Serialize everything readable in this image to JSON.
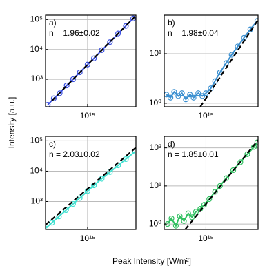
{
  "xlabel": "Peak Intensity [W/m²]",
  "ylabel": "Intensity [a.u.]",
  "chart_data": [
    {
      "type": "scatter",
      "label": "a)",
      "annotation": "n = 1.96±0.02",
      "xlog": true,
      "ylog": true,
      "grid": true,
      "xlim": [
        300000000000000.0,
        4000000000000000.0
      ],
      "ylim": [
        120,
        140000
      ],
      "xticks": [
        {
          "value": 1000000000000000.0,
          "label": "10¹⁵"
        }
      ],
      "yticks": [
        {
          "value": 1000,
          "label": "10³"
        },
        {
          "value": 10000,
          "label": "10⁴"
        },
        {
          "value": 100000,
          "label": "10⁵"
        }
      ],
      "series": [
        {
          "color": "#3a4fe0",
          "style": "markers-line",
          "x": [
            320000000000000.0,
            380000000000000.0,
            450000000000000.0,
            550000000000000.0,
            660000000000000.0,
            800000000000000.0,
            1000000000000000.0,
            1200000000000000.0,
            1500000000000000.0,
            1900000000000000.0,
            2400000000000000.0,
            3000000000000000.0,
            3700000000000000.0
          ],
          "values": [
            140,
            230,
            340,
            620,
            1000,
            1700,
            3100,
            5000,
            9400,
            17500,
            34000,
            61000,
            109000
          ]
        },
        {
          "color": "#000000",
          "style": "dashed",
          "x": [
            360000000000000.0,
            4000000000000000.0
          ],
          "values": [
            190,
            135000
          ]
        }
      ]
    },
    {
      "type": "scatter",
      "label": "b)",
      "annotation": "n = 1.98±0.04",
      "xlog": true,
      "ylog": true,
      "grid": true,
      "xlim": [
        300000000000000.0,
        4500000000000000.0
      ],
      "ylim": [
        0.85,
        60
      ],
      "xticks": [
        {
          "value": 1000000000000000.0,
          "label": "10¹⁵"
        }
      ],
      "yticks": [
        {
          "value": 1,
          "label": "10⁰"
        },
        {
          "value": 10,
          "label": "10¹"
        }
      ],
      "series": [
        {
          "color": "#3a8fd0",
          "style": "markers-line",
          "x": [
            320000000000000.0,
            360000000000000.0,
            400000000000000.0,
            450000000000000.0,
            500000000000000.0,
            560000000000000.0,
            630000000000000.0,
            700000000000000.0,
            800000000000000.0,
            900000000000000.0,
            1000000000000000.0,
            1150000000000000.0,
            1300000000000000.0,
            1500000000000000.0,
            1800000000000000.0,
            2100000000000000.0,
            2500000000000000.0,
            3000000000000000.0,
            3600000000000000.0,
            4400000000000000.0
          ],
          "values": [
            1.5,
            1.3,
            1.7,
            1.4,
            1.6,
            1.2,
            1.5,
            1.3,
            1.6,
            1.4,
            1.6,
            2.0,
            2.8,
            4.2,
            6.5,
            9.5,
            14,
            21,
            31,
            46
          ]
        },
        {
          "color": "#000000",
          "style": "dashed",
          "x": [
            850000000000000.0,
            4500000000000000.0
          ],
          "values": [
            0.85,
            48
          ]
        }
      ]
    },
    {
      "type": "scatter",
      "label": "c)",
      "annotation": "n = 2.03±0.02",
      "xlog": true,
      "ylog": true,
      "grid": true,
      "xlim": [
        300000000000000.0,
        4000000000000000.0
      ],
      "ylim": [
        120,
        140000
      ],
      "xticks": [
        {
          "value": 1000000000000000.0,
          "label": "10¹⁵"
        }
      ],
      "yticks": [
        {
          "value": 1000,
          "label": "10³"
        },
        {
          "value": 10000,
          "label": "10⁴"
        },
        {
          "value": 100000,
          "label": "10⁵"
        }
      ],
      "series": [
        {
          "color": "#40e0d0",
          "style": "markers-line",
          "x": [
            300000000000000.0,
            360000000000000.0,
            440000000000000.0,
            540000000000000.0,
            660000000000000.0,
            800000000000000.0,
            1000000000000000.0,
            1200000000000000.0,
            1500000000000000.0,
            1900000000000000.0,
            2400000000000000.0,
            3000000000000000.0,
            3900000000000000.0
          ],
          "values": [
            130,
            200,
            320,
            520,
            830,
            1300,
            2200,
            3400,
            5600,
            9300,
            15500,
            25000,
            44000
          ]
        },
        {
          "color": "#000000",
          "style": "dashed",
          "x": [
            300000000000000.0,
            4000000000000000.0
          ],
          "values": [
            170,
            60000
          ]
        }
      ]
    },
    {
      "type": "scatter",
      "label": "d)",
      "annotation": "n = 1.85±0.01",
      "xlog": true,
      "ylog": true,
      "grid": true,
      "xlim": [
        300000000000000.0,
        4500000000000000.0
      ],
      "ylim": [
        0.72,
        200
      ],
      "xticks": [
        {
          "value": 1000000000000000.0,
          "label": "10¹⁵"
        }
      ],
      "yticks": [
        {
          "value": 1,
          "label": "10⁰"
        },
        {
          "value": 10,
          "label": "10¹"
        },
        {
          "value": 100,
          "label": "10²"
        }
      ],
      "series": [
        {
          "color": "#30c060",
          "style": "markers-line",
          "x": [
            330000000000000.0,
            370000000000000.0,
            420000000000000.0,
            470000000000000.0,
            530000000000000.0,
            600000000000000.0,
            670000000000000.0,
            750000000000000.0,
            850000000000000.0,
            950000000000000.0,
            1100000000000000.0,
            1300000000000000.0,
            1500000000000000.0,
            1800000000000000.0,
            2200000000000000.0,
            2700000000000000.0,
            3300000000000000.0,
            4000000000000000.0,
            4400000000000000.0
          ],
          "values": [
            1.0,
            1.4,
            0.9,
            1.6,
            1.2,
            1.9,
            1.5,
            2.1,
            2.5,
            3.2,
            4.5,
            7,
            10,
            16,
            26,
            42,
            68,
            105,
            140
          ]
        },
        {
          "color": "#000000",
          "style": "dashed",
          "x": [
            550000000000000.0,
            4500000000000000.0
          ],
          "values": [
            0.72,
            160
          ]
        }
      ]
    }
  ]
}
